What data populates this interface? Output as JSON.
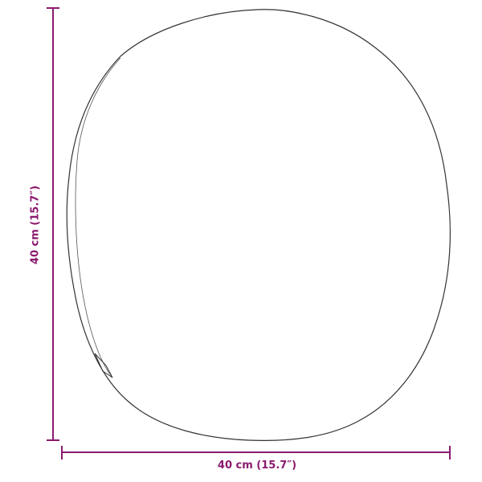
{
  "dimensions": {
    "width_label": "40 cm (15.7″)",
    "height_label": "40 cm (15.7″)"
  },
  "colors": {
    "dimension_line": "#8b1a6e",
    "outline": "#333333"
  },
  "shape": "round-mirror-outline"
}
